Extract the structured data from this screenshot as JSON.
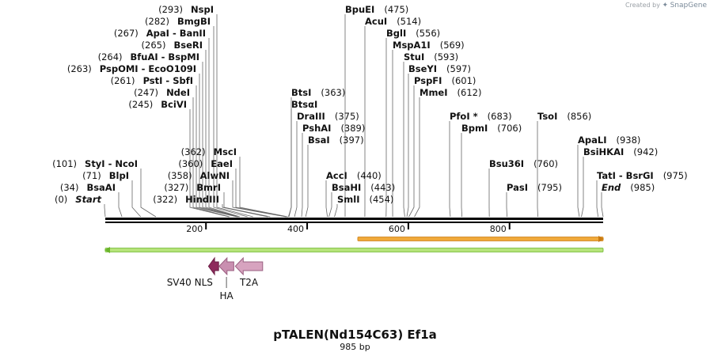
{
  "branding": {
    "created_by": "Created by",
    "product": "SnapGene"
  },
  "plasmid": {
    "name": "pTALEN(Nd154C63) Ef1a",
    "length_label": "985 bp"
  },
  "sequence": {
    "start": 1,
    "end": 985
  },
  "ruler": {
    "ticks": [
      200,
      400,
      600,
      800
    ]
  },
  "sites": [
    {
      "name": "Start",
      "pos_label": "(0)",
      "pos": 1,
      "italic": true,
      "name_first": false,
      "row": 0,
      "anchor": 132
    },
    {
      "name": "BsaAI",
      "pos_label": "(34)",
      "pos": 34,
      "name_first": false,
      "row": 1,
      "anchor": 150
    },
    {
      "name": "BlpI",
      "pos_label": "(71)",
      "pos": 71,
      "name_first": false,
      "row": 2,
      "anchor": 167
    },
    {
      "name": "StyI - NcoI",
      "pos_label": "(101)",
      "pos": 101,
      "name_first": false,
      "row": 3,
      "anchor": 178
    },
    {
      "name": "BciVI",
      "pos_label": "(245)",
      "pos": 245,
      "name_first": false,
      "row": 8,
      "anchor": 240
    },
    {
      "name": "NdeI",
      "pos_label": "(247)",
      "pos": 247,
      "name_first": false,
      "row": 9,
      "anchor": 244
    },
    {
      "name": "PstI - SbfI",
      "pos_label": "(261)",
      "pos": 261,
      "name_first": false,
      "row": 10,
      "anchor": 248
    },
    {
      "name": "PspOMI - EcoO109I",
      "pos_label": "(263)",
      "pos": 263,
      "name_first": false,
      "row": 11,
      "anchor": 252
    },
    {
      "name": "BfuAI - BspMI",
      "pos_label": "(264)",
      "pos": 264,
      "name_first": false,
      "row": 12,
      "anchor": 256
    },
    {
      "name": "BseRI",
      "pos_label": "(265)",
      "pos": 265,
      "name_first": false,
      "row": 13,
      "anchor": 260
    },
    {
      "name": "ApaI - BanII",
      "pos_label": "(267)",
      "pos": 267,
      "name_first": false,
      "row": 14,
      "anchor": 264
    },
    {
      "name": "BmgBI",
      "pos_label": "(282)",
      "pos": 282,
      "name_first": false,
      "row": 15,
      "anchor": 270
    },
    {
      "name": "NspI",
      "pos_label": "(293)",
      "pos": 293,
      "name_first": false,
      "row": 16,
      "anchor": 274
    },
    {
      "name": "HindIII",
      "pos_label": "(322)",
      "pos": 322,
      "name_first": false,
      "row": 0,
      "anchor": 281
    },
    {
      "name": "BmrI",
      "pos_label": "(327)",
      "pos": 327,
      "name_first": false,
      "row": 1,
      "anchor": 283
    },
    {
      "name": "AlwNI",
      "pos_label": "(358)",
      "pos": 358,
      "name_first": false,
      "row": 2,
      "anchor": 294
    },
    {
      "name": "EaeI",
      "pos_label": "(360)",
      "pos": 360,
      "name_first": false,
      "row": 3,
      "anchor": 298
    },
    {
      "name": "MscI",
      "pos_label": "(362)",
      "pos": 362,
      "name_first": false,
      "row": 4,
      "anchor": 303
    },
    {
      "name": "BtsI",
      "pos_label": "(363)",
      "pos": 363,
      "name_first": true,
      "row": 9,
      "anchor": 368
    },
    {
      "name": "BtsαI",
      "pos_label": "",
      "pos": 364,
      "name_first": true,
      "row": 8,
      "anchor": 368
    },
    {
      "name": "DraIII",
      "pos_label": "(375)",
      "pos": 375,
      "name_first": true,
      "row": 7,
      "anchor": 375
    },
    {
      "name": "PshAI",
      "pos_label": "(389)",
      "pos": 389,
      "name_first": true,
      "row": 6,
      "anchor": 382
    },
    {
      "name": "BsaI",
      "pos_label": "(397)",
      "pos": 397,
      "name_first": true,
      "row": 5,
      "anchor": 389
    },
    {
      "name": "AccI",
      "pos_label": "(440)",
      "pos": 440,
      "name_first": true,
      "row": 2,
      "anchor": 412
    },
    {
      "name": "BsaHI",
      "pos_label": "(443)",
      "pos": 443,
      "name_first": true,
      "row": 1,
      "anchor": 419
    },
    {
      "name": "SmlI",
      "pos_label": "(454)",
      "pos": 454,
      "name_first": true,
      "row": 0,
      "anchor": 426
    },
    {
      "name": "BpuEI",
      "pos_label": "(475)",
      "pos": 475,
      "name_first": true,
      "row": 16,
      "anchor": 436
    },
    {
      "name": "AcuI",
      "pos_label": "(514)",
      "pos": 514,
      "name_first": true,
      "row": 15,
      "anchor": 461
    },
    {
      "name": "BglI",
      "pos_label": "(556)",
      "pos": 556,
      "name_first": true,
      "row": 14,
      "anchor": 488
    },
    {
      "name": "MspA1I",
      "pos_label": "(569)",
      "pos": 569,
      "name_first": true,
      "row": 13,
      "anchor": 496
    },
    {
      "name": "StuI",
      "pos_label": "(593)",
      "pos": 593,
      "name_first": true,
      "row": 12,
      "anchor": 510
    },
    {
      "name": "BseYI",
      "pos_label": "(597)",
      "pos": 597,
      "name_first": true,
      "row": 11,
      "anchor": 516
    },
    {
      "name": "PspFI",
      "pos_label": "(601)",
      "pos": 601,
      "name_first": true,
      "row": 10,
      "anchor": 523
    },
    {
      "name": "MmeI",
      "pos_label": "(612)",
      "pos": 612,
      "name_first": true,
      "row": 9,
      "anchor": 530
    },
    {
      "name": "PfoI *",
      "pos_label": "(683)",
      "pos": 683,
      "name_first": true,
      "row": 7,
      "anchor": 568
    },
    {
      "name": "BpmI",
      "pos_label": "(706)",
      "pos": 706,
      "name_first": true,
      "row": 6,
      "anchor": 583
    },
    {
      "name": "Bsu36I",
      "pos_label": "(760)",
      "pos": 760,
      "name_first": true,
      "row": 3,
      "anchor": 618
    },
    {
      "name": "PasI",
      "pos_label": "(795)",
      "pos": 795,
      "name_first": true,
      "row": 1,
      "anchor": 640
    },
    {
      "name": "TsoI",
      "pos_label": "(856)",
      "pos": 856,
      "name_first": true,
      "row": 7,
      "anchor": 679
    },
    {
      "name": "ApaLI",
      "pos_label": "(938)",
      "pos": 938,
      "name_first": true,
      "row": 5,
      "anchor": 730
    },
    {
      "name": "BsiHKAI",
      "pos_label": "(942)",
      "pos": 942,
      "name_first": true,
      "row": 4,
      "anchor": 737
    },
    {
      "name": "TatI - BsrGI",
      "pos_label": "(975)",
      "pos": 975,
      "name_first": true,
      "row": 2,
      "anchor": 754
    },
    {
      "name": "End",
      "pos_label": "(985)",
      "pos": 985,
      "italic": true,
      "name_first": true,
      "row": 1,
      "anchor": 760
    }
  ],
  "features": [
    {
      "name": "orange-orf",
      "start": 500,
      "end": 985,
      "direction": "forward",
      "color": "#f0a93a",
      "outline": "#c97b12",
      "track": "orf1"
    },
    {
      "name": "green-orf",
      "start": 1,
      "end": 985,
      "direction": "reverse",
      "color": "#b6e37a",
      "outline": "#6bb52c",
      "track": "orf2"
    },
    {
      "name": "SV40 NLS",
      "start": 205,
      "end": 225,
      "direction": "reverse",
      "color": "#8e2a5c",
      "outline": "#6a1d44",
      "track": "feature"
    },
    {
      "name": "HA",
      "start": 226,
      "end": 255,
      "direction": "reverse",
      "color": "#c98fb0",
      "outline": "#9a5f80",
      "track": "feature"
    },
    {
      "name": "T2A",
      "start": 258,
      "end": 312,
      "direction": "reverse",
      "color": "#d7a3bf",
      "outline": "#9a5f80",
      "track": "feature"
    }
  ],
  "feature_labels": [
    {
      "text": "SV40 NLS",
      "feature": "SV40 NLS",
      "row": "upper"
    },
    {
      "text": "HA",
      "feature": "HA",
      "row": "lower"
    },
    {
      "text": "T2A",
      "feature": "T2A",
      "row": "upper"
    }
  ],
  "colors": {
    "backbone": "#000000",
    "text": "#111111",
    "leader": "#666666"
  }
}
